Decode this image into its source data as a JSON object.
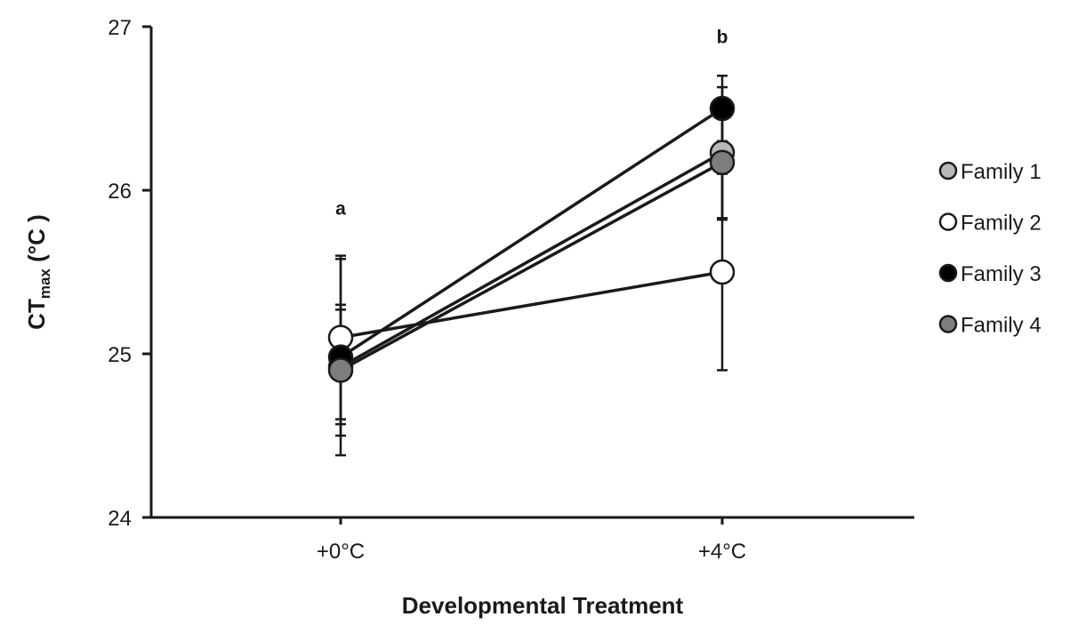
{
  "chart_data": {
    "type": "line",
    "xlabel": "Developmental Treatment",
    "ylabel_main": "CT",
    "ylabel_sub": "max",
    "ylabel_unit": " (°C )",
    "categories": [
      "+0°C",
      "+4°C"
    ],
    "ylim": [
      24,
      27
    ],
    "yticks": [
      "24",
      "25",
      "26",
      "27"
    ],
    "grid": false,
    "legend_position": "right",
    "annotations": [
      {
        "category": "+0°C",
        "text": "a",
        "y": 25.85
      },
      {
        "category": "+4°C",
        "text": "b",
        "y": 26.9
      }
    ],
    "series": [
      {
        "name": "Family 1",
        "color": "#b8b8b8",
        "values": [
          24.92,
          26.23
        ],
        "error": [
          0.35,
          0.4
        ]
      },
      {
        "name": "Family 2",
        "color": "#ffffff",
        "values": [
          25.1,
          25.5
        ],
        "error": [
          0.5,
          0.6
        ]
      },
      {
        "name": "Family 3",
        "color": "#000000",
        "values": [
          24.98,
          26.5
        ],
        "error": [
          0.6,
          0.2
        ]
      },
      {
        "name": "Family 4",
        "color": "#7d7d7d",
        "values": [
          24.9,
          26.17
        ],
        "error": [
          0.4,
          0.35
        ]
      }
    ]
  }
}
